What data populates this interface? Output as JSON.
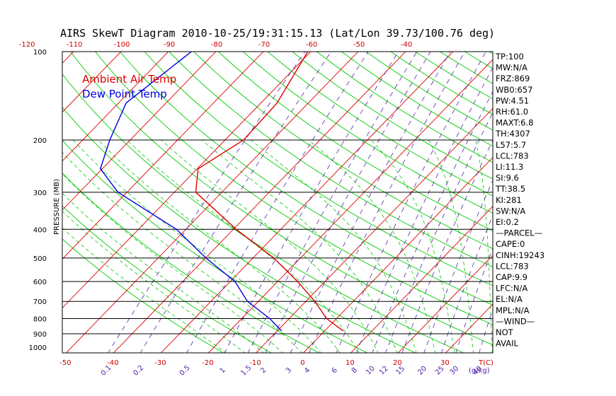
{
  "chart_data": {
    "type": "line",
    "title": "AIRS SkewT Diagram 2010-10-25/19:31:15.13 (Lat/Lon 39.73/100.76 deg)",
    "ylabel": "PRESSURE (MB)",
    "xlabel": "T(C)",
    "mixing_ratio_label": "(g/kg)",
    "pressure_ticks": [
      "100",
      "200",
      "300",
      "400",
      "500",
      "600",
      "700",
      "800",
      "900",
      "1000"
    ],
    "pressure_lines": [
      200,
      300,
      400,
      500,
      600,
      700,
      800,
      900
    ],
    "top_temp_ticks": [
      "-120",
      "-110",
      "-100",
      "-90",
      "-80",
      "-70",
      "-60",
      "-50",
      "-40"
    ],
    "bottom_temp_ticks": [
      "-50",
      "-40",
      "-30",
      "-20",
      "-10",
      "0",
      "10",
      "20",
      "30"
    ],
    "mixing_ratio_ticks": [
      "0.1",
      "0.2",
      "0.5",
      "1",
      "1.5",
      "2",
      "3",
      "4",
      "6",
      "8",
      "10",
      "12",
      "15",
      "20",
      "25",
      "30",
      "40"
    ],
    "legend": [
      {
        "label": "Ambient Air Temp",
        "color": "#e00000"
      },
      {
        "label": "Dew Point Temp",
        "color": "#0000dd"
      }
    ],
    "series": [
      {
        "name": "Ambient Air Temp",
        "color": "#e00000",
        "points": [
          {
            "p": 100,
            "t": -60.7
          },
          {
            "p": 150,
            "t": -56.6
          },
          {
            "p": 200,
            "t": -56.1
          },
          {
            "p": 250,
            "t": -59.8
          },
          {
            "p": 300,
            "t": -55.5
          },
          {
            "p": 400,
            "t": -39.4
          },
          {
            "p": 500,
            "t": -25.6
          },
          {
            "p": 600,
            "t": -15.8
          },
          {
            "p": 700,
            "t": -8.1
          },
          {
            "p": 800,
            "t": -2.1
          },
          {
            "p": 880,
            "t": 3.9
          }
        ]
      },
      {
        "name": "Dew Point Temp",
        "color": "#0000dd",
        "points": [
          {
            "p": 100,
            "t": -85.1
          },
          {
            "p": 150,
            "t": -88.4
          },
          {
            "p": 200,
            "t": -84.3
          },
          {
            "p": 250,
            "t": -80.4
          },
          {
            "p": 300,
            "t": -71.9
          },
          {
            "p": 400,
            "t": -52.0
          },
          {
            "p": 500,
            "t": -39.9
          },
          {
            "p": 600,
            "t": -29.0
          },
          {
            "p": 700,
            "t": -22.3
          },
          {
            "p": 800,
            "t": -14.1
          },
          {
            "p": 880,
            "t": -9.1
          }
        ]
      }
    ],
    "colors": {
      "isotherm": "#e00000",
      "dry_adiabat": "#00cc00",
      "moist_adiabat": "#00cc00",
      "mixing_ratio": "#5522aa",
      "isobar": "#000000"
    }
  },
  "indices": [
    "TP:100",
    "MW:N/A",
    "FRZ:869",
    "WB0:657",
    "PW:4.51",
    "RH:61.0",
    "MAXT:6.8",
    "TH:4307",
    "L57:5.7",
    "LCL:783",
    "LI:11.3",
    "SI:9.6",
    "TT:38.5",
    "KI:281",
    "SW:N/A",
    "EI:0.2",
    "—PARCEL—",
    "CAPE:0",
    "CINH:19243",
    "LCL:783",
    "CAP:9.9",
    "LFC:N/A",
    "EL:N/A",
    "MPL:N/A",
    "—WIND—",
    "NOT",
    "AVAIL"
  ]
}
